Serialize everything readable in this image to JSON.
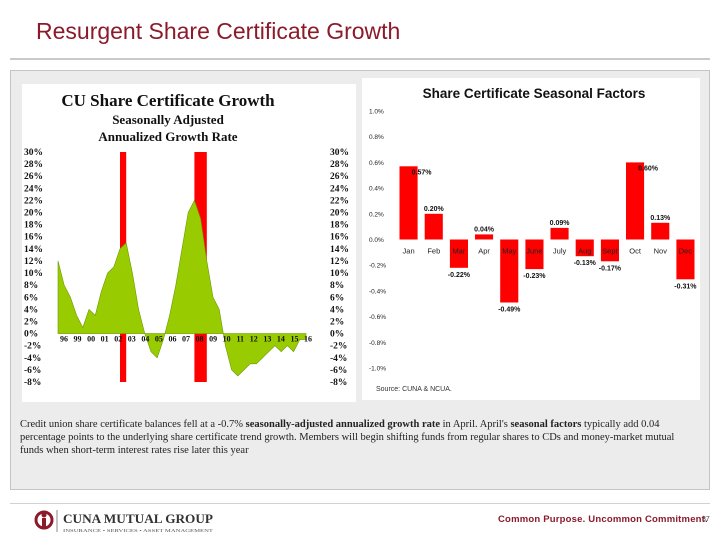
{
  "slide": {
    "title": "Resurgent Share Certificate Growth",
    "caption_p1": "Credit union share certificate balances fell at a -0.7% ",
    "caption_b1": "seasonally-adjusted annualized growth rate",
    "caption_p2": " in April. April's ",
    "caption_b2": "seasonal factors",
    "caption_p3": " typically add 0.04 percentage points to the underlying share certificate trend growth. Members will begin shifting funds from regular shares to CDs and money-market mutual funds when short-term interest rates rise later this year",
    "footer_brand": "CUNA MUTUAL GROUP",
    "footer_sub": "INSURANCE • SERVICES • ASSET MANAGEMENT",
    "tagline": "Common Purpose. Uncommon Commitment.",
    "page_number": "37"
  },
  "colors": {
    "title": "#8b1a2a",
    "growth_fill": "#99cc00",
    "highlight": "#ff0000",
    "bar": "#ff0000",
    "panel": "#ececec"
  },
  "chart_data": [
    {
      "type": "area",
      "title": "CU Share Certificate Growth",
      "subtitle": "Seasonally Adjusted\nAnnualized Growth Rate",
      "ylim": [
        -8,
        30
      ],
      "yticks": [
        "30%",
        "28%",
        "26%",
        "24%",
        "22%",
        "20%",
        "18%",
        "16%",
        "14%",
        "12%",
        "10%",
        "8%",
        "6%",
        "4%",
        "2%",
        "0%",
        "-2%",
        "-4%",
        "-6%",
        "-8%"
      ],
      "xticks": [
        "96",
        "99",
        "00",
        "01",
        "02",
        "03",
        "04",
        "05",
        "06",
        "07",
        "08",
        "09",
        "10",
        "11",
        "12",
        "13",
        "14",
        "15",
        "16"
      ],
      "x": [
        1996.0,
        1996.5,
        1997.0,
        1997.5,
        1998.0,
        1998.5,
        1999.0,
        1999.5,
        2000.0,
        2000.5,
        2001.0,
        2001.5,
        2002.0,
        2002.5,
        2003.0,
        2003.5,
        2004.0,
        2004.5,
        2005.0,
        2005.5,
        2006.0,
        2006.5,
        2007.0,
        2007.5,
        2008.0,
        2008.5,
        2009.0,
        2009.5,
        2010.0,
        2010.5,
        2011.0,
        2011.5,
        2012.0,
        2012.5,
        2013.0,
        2013.5,
        2014.0,
        2014.5,
        2015.0,
        2015.5,
        2016.0
      ],
      "y": [
        12,
        8,
        6,
        3,
        1,
        4,
        3,
        7,
        10,
        11,
        14,
        15,
        10,
        4,
        0,
        -3,
        -4,
        -1,
        3,
        8,
        14,
        20,
        22,
        19,
        12,
        6,
        4,
        -2,
        -6,
        -7,
        -6,
        -5,
        -5,
        -4,
        -3,
        -2,
        -3,
        -2,
        -3,
        -1,
        -1
      ],
      "highlight_bands": [
        [
          2001.0,
          2001.5
        ],
        [
          2007.0,
          2008.0
        ]
      ]
    },
    {
      "type": "bar",
      "title": "Share Certificate Seasonal Factors",
      "categories": [
        "Jan",
        "Feb",
        "Mar",
        "Apr",
        "May",
        "June",
        "July",
        "Aug",
        "Sept",
        "Oct",
        "Nov",
        "Dec"
      ],
      "values": [
        0.57,
        0.2,
        -0.22,
        0.04,
        -0.49,
        -0.23,
        0.09,
        -0.13,
        -0.17,
        0.6,
        0.13,
        -0.31
      ],
      "data_labels": [
        "0.57%",
        "0.20%",
        "-0.22%",
        "0.04%",
        "-0.49%",
        "-0.23%",
        "0.09%",
        "-0.13%",
        "-0.17%",
        "0.60%",
        "0.13%",
        "-0.31%"
      ],
      "ylim": [
        -1.0,
        1.0
      ],
      "yticks": [
        "1.0%",
        "0.8%",
        "0.6%",
        "0.4%",
        "0.2%",
        "0.0%",
        "-0.2%",
        "-0.4%",
        "-0.6%",
        "-0.8%",
        "-1.0%"
      ],
      "source": "Source: CUNA & NCUA."
    }
  ]
}
